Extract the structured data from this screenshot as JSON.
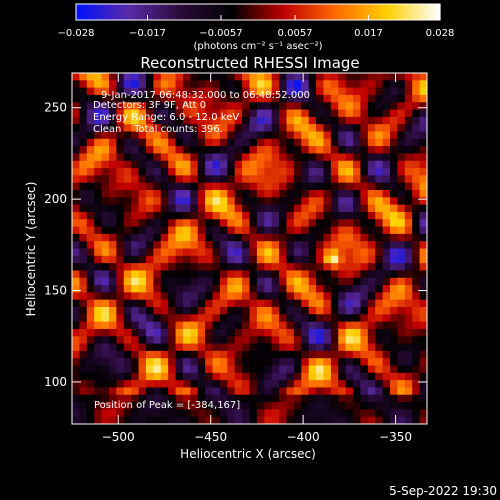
{
  "chart_data": {
    "type": "heatmap",
    "title": "Reconstructed RHESSI Image",
    "xlabel": "Heliocentric X (arcsec)",
    "ylabel": "Heliocentric Y (arcsec)",
    "xlim": [
      -525,
      -333
    ],
    "ylim": [
      77,
      269
    ],
    "x_ticks": [
      -500,
      -450,
      -400,
      -350
    ],
    "y_ticks": [
      100,
      150,
      200,
      250
    ],
    "x_tick_labels": [
      "−500",
      "−450",
      "−400",
      "−350"
    ],
    "y_tick_labels": [
      "100",
      "150",
      "200",
      "250"
    ],
    "grid": false,
    "colorbar": {
      "range": [
        -0.028,
        0.028
      ],
      "ticks": [
        -0.028,
        -0.017,
        -0.0057,
        0.0057,
        0.017,
        0.028
      ],
      "tick_labels": [
        "−0.028",
        "−0.017",
        "−0.0057",
        "0.0057",
        "0.017",
        "0.028"
      ],
      "unit_label": "(photons cm⁻² s⁻¹ asec⁻²)",
      "colormap": [
        "#0010ff",
        "#5a2aa8",
        "#2a0a3a",
        "#000000",
        "#c00000",
        "#ff6a00",
        "#ffd000",
        "#ffffff"
      ]
    },
    "annotations": [
      "9-Jan-2017 06:48:32.000 to 06:48:52.000",
      "Detectors: 3F 9F, Att 0",
      "Energy Range: 6.0 - 12.0 keV",
      "Clean    Total counts: 396.",
      "Position of Peak = [-384,167]"
    ],
    "peak": {
      "x": -384,
      "y": 167
    },
    "footer": "5-Sep-2022 19:30"
  }
}
